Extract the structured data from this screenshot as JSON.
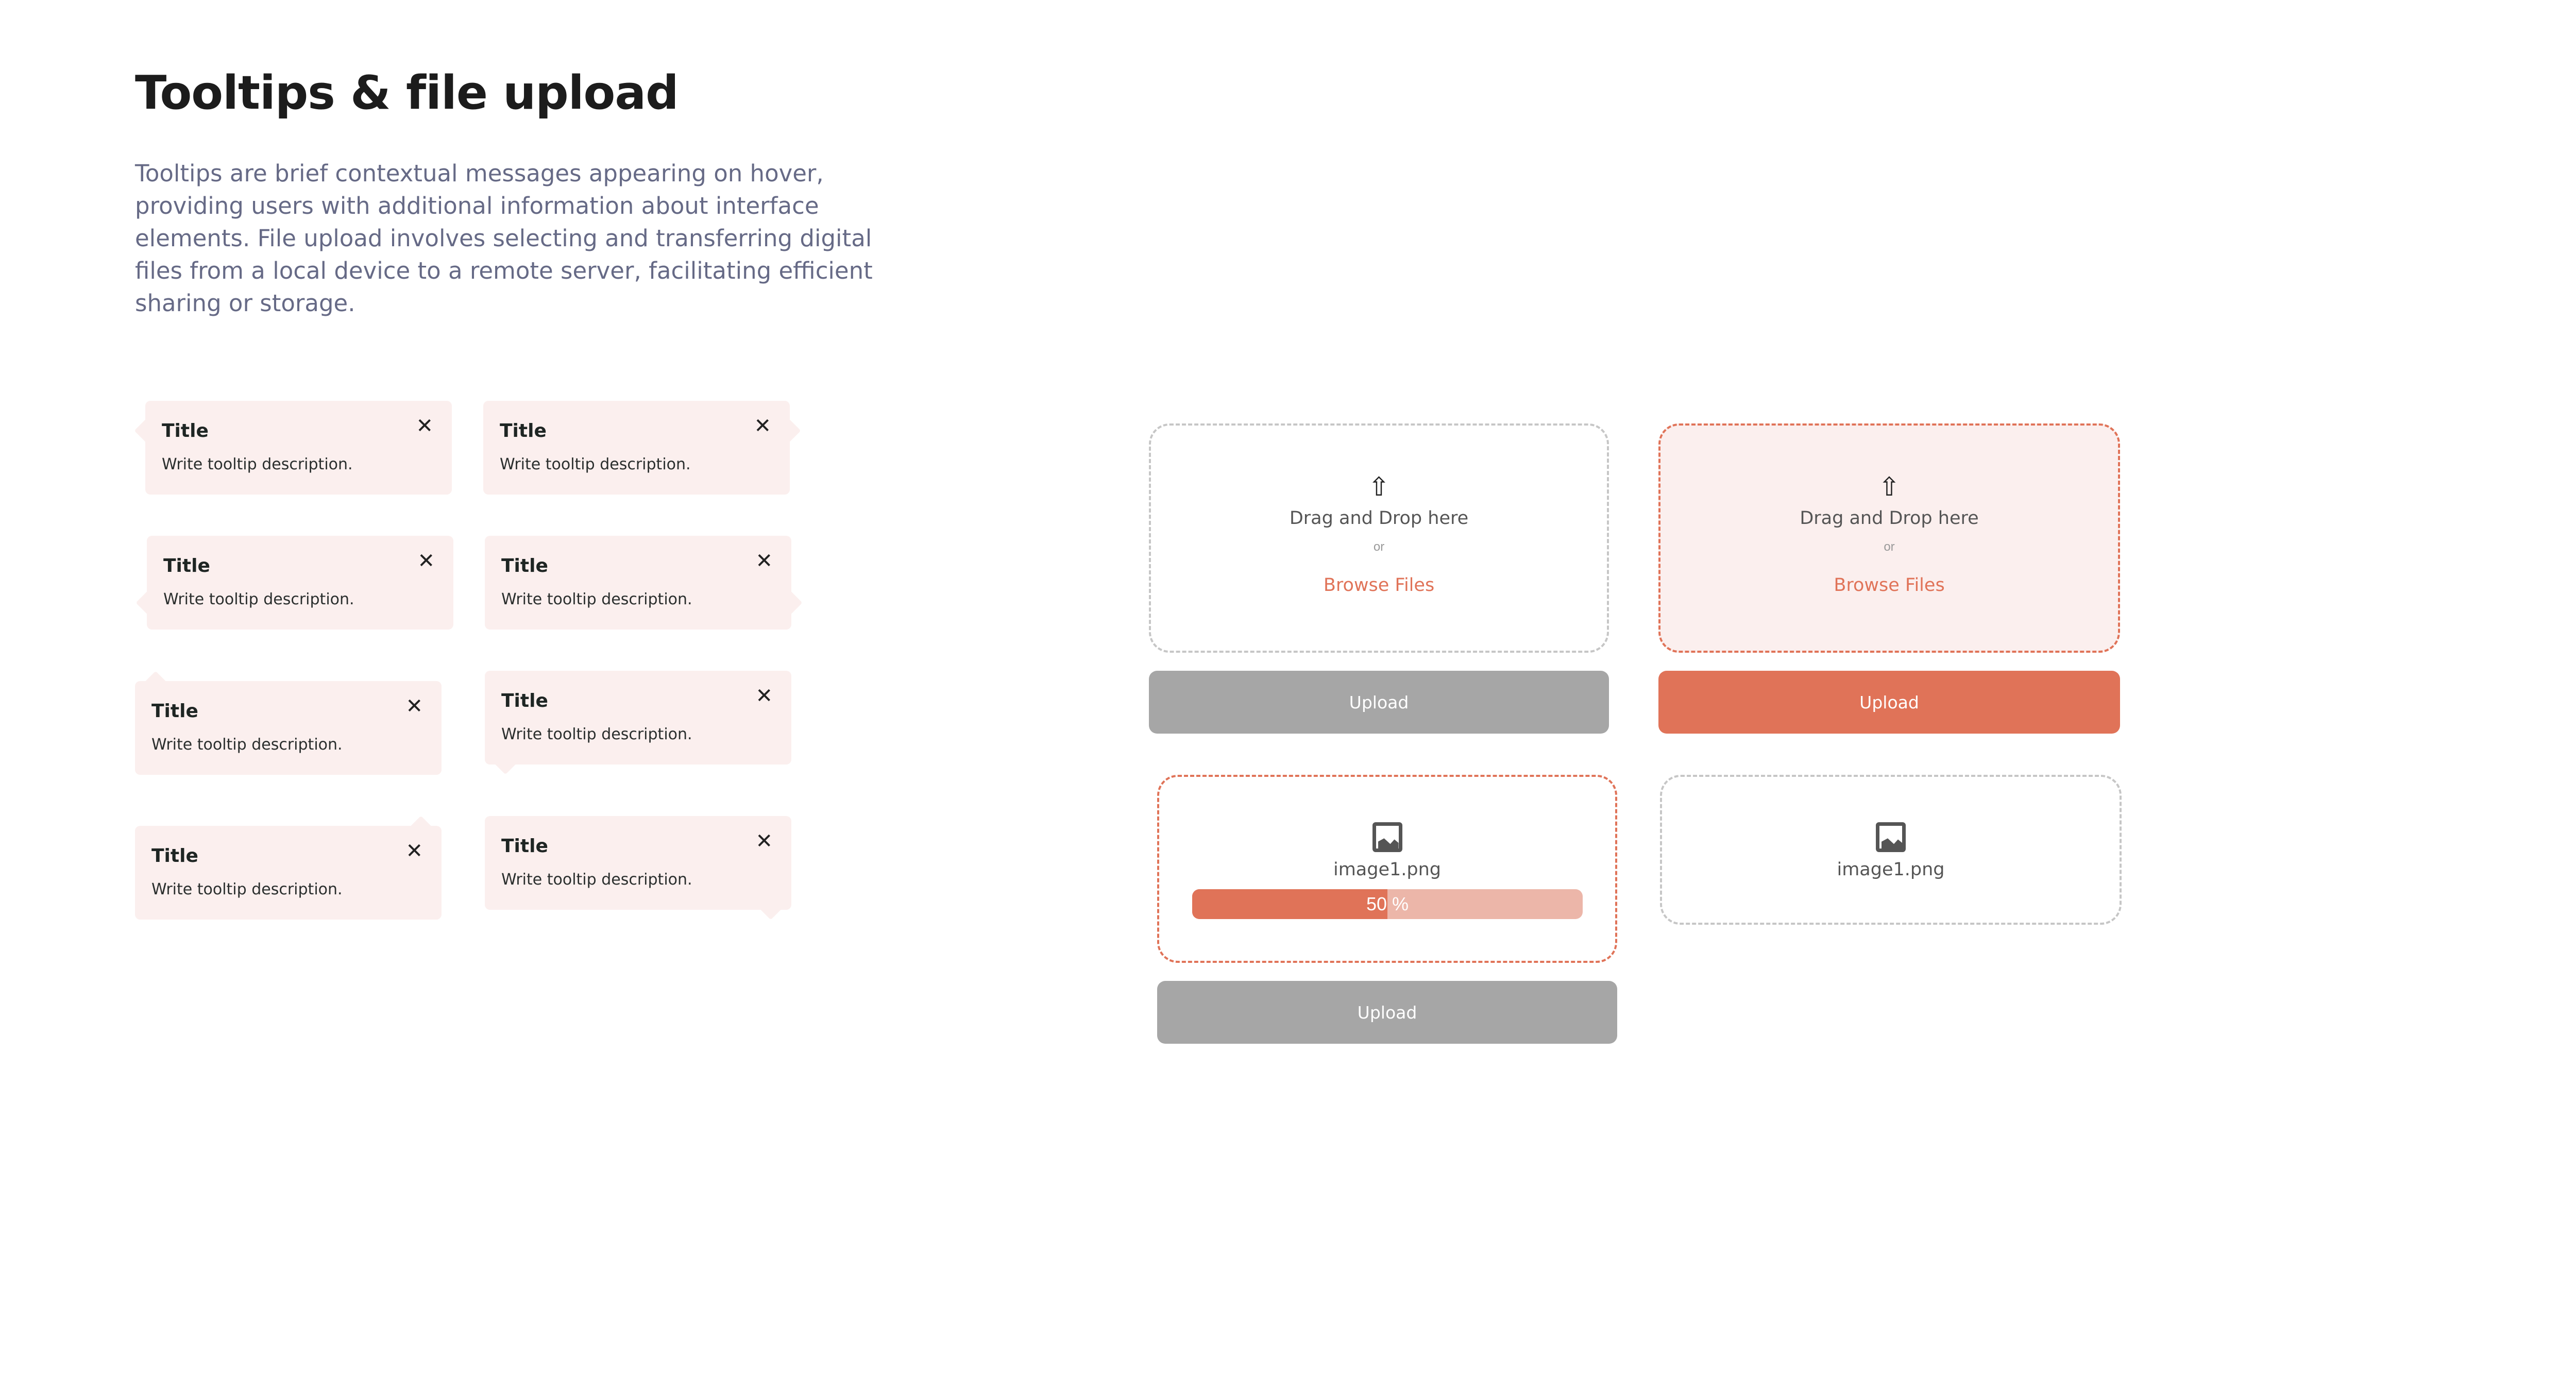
{
  "header": {
    "title": "Tooltips & file upload",
    "description": "Tooltips are brief contextual messages appearing on hover, providing users with additional information about interface elements. File upload involves selecting and transferring digital files from a local device to a remote server, facilitating efficient sharing or storage."
  },
  "tooltips": [
    {
      "title": "Title",
      "description": "Write tooltip description.",
      "arrow": "left-top"
    },
    {
      "title": "Title",
      "description": "Write tooltip description.",
      "arrow": "right-top"
    },
    {
      "title": "Title",
      "description": "Write tooltip description.",
      "arrow": "left-bottom"
    },
    {
      "title": "Title",
      "description": "Write tooltip description.",
      "arrow": "right-bottom"
    },
    {
      "title": "Title",
      "description": "Write tooltip description.",
      "arrow": "top-left"
    },
    {
      "title": "Title",
      "description": "Write tooltip description.",
      "arrow": "bottom-left"
    },
    {
      "title": "Title",
      "description": "Write tooltip description.",
      "arrow": "top-right"
    },
    {
      "title": "Title",
      "description": "Write tooltip description.",
      "arrow": "bottom-right"
    }
  ],
  "upload": {
    "drag_text": "Drag and Drop here",
    "or_text": "or",
    "browse_label": "Browse Files",
    "upload_label": "Upload",
    "file_name": "image1.png",
    "progress_label": "50 %",
    "progress": 50,
    "colors": {
      "accent": "#E07358",
      "light": "#FBEFEE",
      "disabled": "#A6A6A6",
      "border": "#C6C6C6"
    }
  }
}
